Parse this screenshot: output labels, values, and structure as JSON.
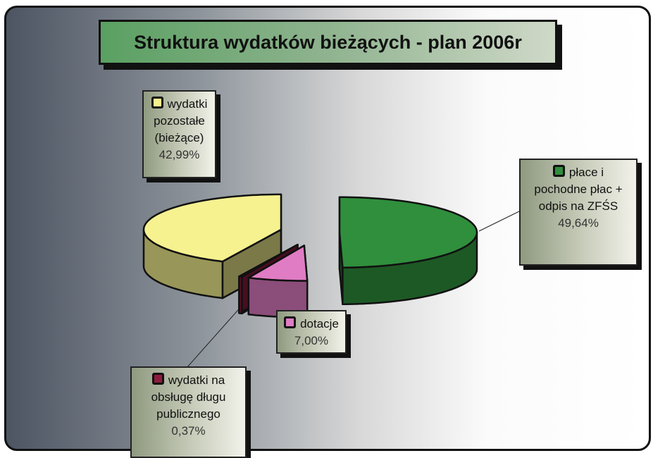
{
  "chart_data": {
    "type": "pie3d",
    "title": "Struktura wydatków bieżących - plan 2006r",
    "categories": [
      "płace i pochodne płac + odpis na ZFŚS",
      "dotacje",
      "wydatki na obsługę długu publicznego",
      "wydatki pozostałe (bieżące)"
    ],
    "values": [
      49.64,
      7.0,
      0.37,
      42.99
    ],
    "value_labels": [
      "49,64%",
      "7,00%",
      "0,37%",
      "42,99%"
    ],
    "colors": [
      "#2f8f3c",
      "#e07cc4",
      "#8e1c3e",
      "#f6f290"
    ]
  }
}
